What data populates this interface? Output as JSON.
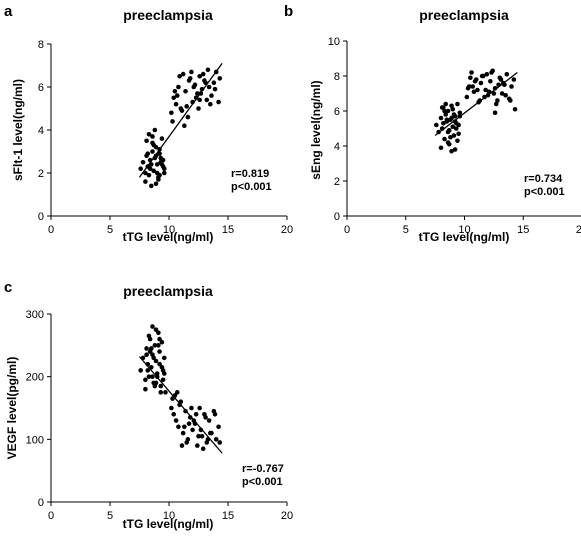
{
  "chart_data": [
    {
      "id": "a",
      "panel_label": "a",
      "type": "scatter",
      "title": "preeclampsia",
      "xlabel": "tTG level(ng/ml)",
      "ylabel": "sFlt-1 level(ng/ml)",
      "xlim": [
        0,
        20
      ],
      "ylim": [
        0,
        8
      ],
      "xticks": [
        0,
        5,
        10,
        15,
        20
      ],
      "yticks": [
        0,
        2,
        4,
        6,
        8
      ],
      "annotation_r": "r=0.819",
      "annotation_p": "p<0.001",
      "fit_line": [
        [
          7.5,
          1.8
        ],
        [
          14.5,
          7.1
        ]
      ],
      "series": [
        {
          "x": [
            7.6,
            7.8,
            8.0,
            8.1,
            8.2,
            8.3,
            8.4,
            8.5,
            8.6,
            8.7,
            8.8,
            8.9,
            9.0,
            9.1,
            9.2,
            9.3,
            9.4,
            9.5,
            9.6,
            8.0,
            8.3,
            8.6,
            8.9,
            9.2,
            9.5,
            8.4,
            8.8,
            9.1,
            8.2,
            8.7,
            9.0,
            9.3,
            8.5,
            9.4,
            8.1,
            8.9,
            9.6,
            8.6,
            9.2,
            10.2,
            10.4,
            10.6,
            10.8,
            11.0,
            11.2,
            11.4,
            11.6,
            11.8,
            12.0,
            12.2,
            12.4,
            12.6,
            12.8,
            13.0,
            13.2,
            13.4,
            13.6,
            13.8,
            14.0,
            14.2,
            10.5,
            11.1,
            11.7,
            12.3,
            12.9,
            13.5,
            10.9,
            11.5,
            12.1,
            12.7,
            13.3,
            10.3,
            11.3,
            12.5,
            13.1,
            11.9,
            12.6,
            10.7,
            14.3,
            13.9
          ],
          "y": [
            2.2,
            2.5,
            2.0,
            2.8,
            2.3,
            1.9,
            2.6,
            2.4,
            3.0,
            2.1,
            2.7,
            3.2,
            2.4,
            1.8,
            2.9,
            2.5,
            3.6,
            2.3,
            2.0,
            1.6,
            3.8,
            3.4,
            1.5,
            3.1,
            2.6,
            2.2,
            4.0,
            1.7,
            2.9,
            3.3,
            2.0,
            2.7,
            1.4,
            2.4,
            3.5,
            2.8,
            2.2,
            3.7,
            1.9,
            4.8,
            5.5,
            5.2,
            6.0,
            5.0,
            6.6,
            5.8,
            4.6,
            6.4,
            5.3,
            6.1,
            5.7,
            6.5,
            5.9,
            6.3,
            5.4,
            6.0,
            5.6,
            6.2,
            6.7,
            5.3,
            5.8,
            4.9,
            6.3,
            5.5,
            6.6,
            5.2,
            6.5,
            5.1,
            6.0,
            5.7,
            6.8,
            4.4,
            4.2,
            5.0,
            6.2,
            6.7,
            5.4,
            5.6,
            6.4,
            5.9
          ]
        }
      ]
    },
    {
      "id": "b",
      "panel_label": "b",
      "type": "scatter",
      "title": "preeclampsia",
      "xlabel": "tTG level(ng/ml)",
      "ylabel": "sEng level(ng/ml)",
      "xlim": [
        0,
        20
      ],
      "ylim": [
        0,
        10
      ],
      "xticks": [
        0,
        5,
        10,
        15,
        20
      ],
      "yticks": [
        0,
        2,
        4,
        6,
        8,
        10
      ],
      "annotation_r": "r=0.734",
      "annotation_p": "p<0.001",
      "fit_line": [
        [
          7.5,
          4.6
        ],
        [
          14.5,
          8.2
        ]
      ],
      "series": [
        {
          "x": [
            7.6,
            7.8,
            8.0,
            8.1,
            8.2,
            8.3,
            8.4,
            8.5,
            8.6,
            8.7,
            8.8,
            8.9,
            9.0,
            9.1,
            9.2,
            9.3,
            9.4,
            9.5,
            9.6,
            8.0,
            8.3,
            8.6,
            8.9,
            9.2,
            9.5,
            8.4,
            8.8,
            9.1,
            8.2,
            8.7,
            9.0,
            9.3,
            8.5,
            9.4,
            8.1,
            8.9,
            9.6,
            8.6,
            9.2,
            10.2,
            10.4,
            10.6,
            10.8,
            11.0,
            11.2,
            11.4,
            11.6,
            11.8,
            12.0,
            12.2,
            12.4,
            12.6,
            12.8,
            13.0,
            13.2,
            13.4,
            13.6,
            13.8,
            14.0,
            14.2,
            10.5,
            11.1,
            11.7,
            12.3,
            12.9,
            13.5,
            10.9,
            11.5,
            12.1,
            12.7,
            13.3,
            10.3,
            11.3,
            12.5,
            13.1,
            11.9,
            12.6,
            10.7,
            14.3,
            13.9
          ],
          "y": [
            5.2,
            4.8,
            5.6,
            5.0,
            6.2,
            4.4,
            5.8,
            5.4,
            6.0,
            4.9,
            5.5,
            6.3,
            5.1,
            4.6,
            5.7,
            5.3,
            6.4,
            4.7,
            5.9,
            3.9,
            6.0,
            4.2,
            5.6,
            3.8,
            5.2,
            6.4,
            4.5,
            5.8,
            5.3,
            4.1,
            6.1,
            5.0,
            5.5,
            4.3,
            6.2,
            3.7,
            5.7,
            4.8,
            5.4,
            6.8,
            7.4,
            8.2,
            7.1,
            7.8,
            6.5,
            7.6,
            8.0,
            7.2,
            6.9,
            7.7,
            8.3,
            7.3,
            6.6,
            7.9,
            7.0,
            7.5,
            8.1,
            6.7,
            7.4,
            7.8,
            7.9,
            7.2,
            6.8,
            8.2,
            7.5,
            6.9,
            7.7,
            8.0,
            7.1,
            6.4,
            7.6,
            7.3,
            6.6,
            7.0,
            7.8,
            8.1,
            5.9,
            7.4,
            6.1,
            6.6
          ]
        }
      ]
    },
    {
      "id": "c",
      "panel_label": "c",
      "type": "scatter",
      "title": "preeclampsia",
      "xlabel": "tTG level(ng/ml)",
      "ylabel": "VEGF level(pg/ml)",
      "xlim": [
        0,
        20
      ],
      "ylim": [
        0,
        300
      ],
      "xticks": [
        0,
        5,
        10,
        15,
        20
      ],
      "yticks": [
        0,
        100,
        200,
        300
      ],
      "annotation_r": "r=-0.767",
      "annotation_p": "p<0.001",
      "fit_line": [
        [
          7.5,
          232
        ],
        [
          14.5,
          78
        ]
      ],
      "series": [
        {
          "x": [
            7.6,
            7.8,
            8.0,
            8.1,
            8.2,
            8.3,
            8.4,
            8.5,
            8.6,
            8.7,
            8.8,
            8.9,
            9.0,
            9.1,
            9.2,
            9.3,
            9.4,
            9.5,
            9.6,
            8.0,
            8.3,
            8.6,
            8.9,
            9.2,
            9.5,
            8.4,
            8.8,
            9.1,
            8.2,
            8.7,
            9.0,
            9.3,
            8.5,
            9.4,
            8.1,
            8.9,
            9.6,
            8.6,
            9.2,
            9.7,
            10.2,
            10.4,
            10.6,
            10.8,
            11.0,
            11.2,
            11.4,
            11.6,
            11.8,
            12.0,
            12.2,
            12.4,
            12.6,
            12.8,
            13.0,
            13.2,
            13.4,
            13.6,
            13.8,
            14.0,
            14.2,
            10.5,
            11.1,
            11.7,
            12.3,
            12.9,
            13.5,
            10.9,
            11.5,
            12.1,
            12.7,
            13.3,
            10.3,
            11.3,
            12.5,
            13.1,
            11.9,
            10.7,
            14.3,
            13.9
          ],
          "y": [
            210,
            230,
            195,
            245,
            220,
            200,
            260,
            215,
            235,
            190,
            250,
            225,
            205,
            270,
            240,
            185,
            255,
            210,
            230,
            180,
            265,
            200,
            275,
            220,
            195,
            240,
            185,
            250,
            210,
            230,
            200,
            175,
            245,
            215,
            235,
            190,
            205,
            280,
            260,
            175,
            150,
            140,
            130,
            120,
            160,
            110,
            145,
            100,
            135,
            115,
            125,
            90,
            150,
            105,
            140,
            95,
            130,
            110,
            145,
            100,
            120,
            170,
            90,
            125,
            140,
            85,
            110,
            155,
            95,
            130,
            115,
            100,
            165,
            120,
            105,
            135,
            150,
            175,
            95,
            140
          ]
        }
      ]
    }
  ]
}
